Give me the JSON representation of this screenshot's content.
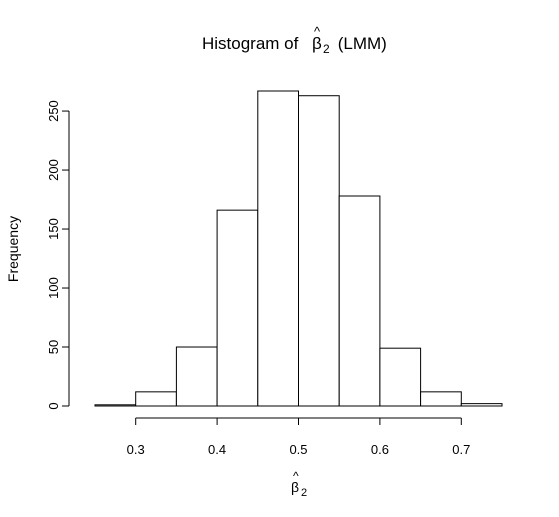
{
  "chart_data": {
    "type": "bar",
    "title": {
      "prefix": "Histogram of ",
      "symbol": "β",
      "hat": "^",
      "subscript": "2",
      "suffix": " (LMM)"
    },
    "xlabel": {
      "symbol": "β",
      "hat": "^",
      "subscript": "2"
    },
    "ylabel": "Frequency",
    "bin_edges": [
      0.25,
      0.3,
      0.35,
      0.4,
      0.45,
      0.5,
      0.55,
      0.6,
      0.65,
      0.7,
      0.75
    ],
    "values": [
      1,
      12,
      50,
      166,
      267,
      263,
      178,
      49,
      12,
      2
    ],
    "xlim": [
      0.25,
      0.75
    ],
    "ylim": [
      0,
      267
    ],
    "x_ticks": [
      0.3,
      0.4,
      0.5,
      0.6,
      0.7
    ],
    "x_tick_labels": [
      "0.3",
      "0.4",
      "0.5",
      "0.6",
      "0.7"
    ],
    "y_ticks": [
      0,
      50,
      100,
      150,
      200,
      250
    ],
    "y_tick_labels": [
      "0",
      "50",
      "100",
      "150",
      "200",
      "250"
    ],
    "grid": false,
    "legend": "none",
    "colors": {
      "bar_fill": "#ffffff",
      "bar_stroke": "#000000"
    }
  }
}
